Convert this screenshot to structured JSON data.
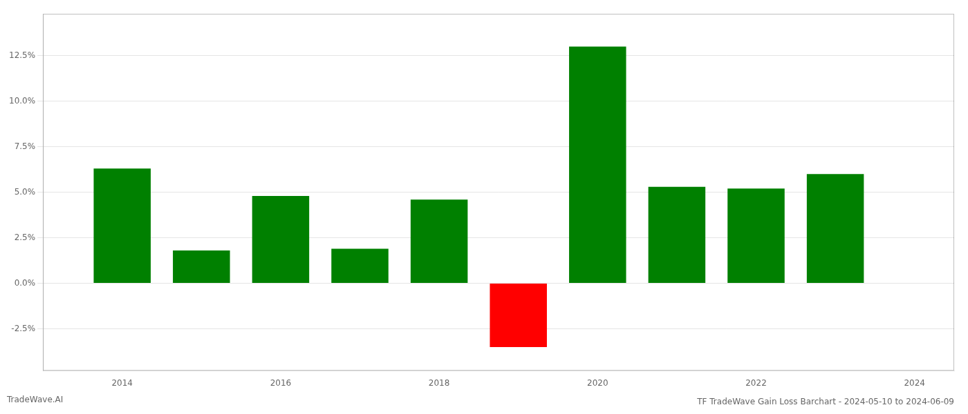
{
  "chart_data": {
    "type": "bar",
    "title": "TF TradeWave Gain Loss Barchart - 2024-05-10 to 2024-06-09",
    "annotations": [
      "TradeWave.AI"
    ],
    "x": [
      2014,
      2015,
      2016,
      2017,
      2018,
      2019,
      2020,
      2021,
      2022,
      2023
    ],
    "values": [
      0.063,
      0.018,
      0.048,
      0.019,
      0.046,
      -0.035,
      0.13,
      0.053,
      0.052,
      0.06
    ],
    "colors": [
      "#008000",
      "#008000",
      "#008000",
      "#008000",
      "#008000",
      "#ff0000",
      "#008000",
      "#008000",
      "#008000",
      "#008000"
    ],
    "xlim": [
      2013.0,
      2024.5
    ],
    "xticks": [
      2014,
      2016,
      2018,
      2020,
      2022,
      2024
    ],
    "ylim": [
      -0.048,
      0.148
    ],
    "yticks": [
      {
        "value": -0.025,
        "label": "-2.5%"
      },
      {
        "value": 0.0,
        "label": "0.0%"
      },
      {
        "value": 0.025,
        "label": "2.5%"
      },
      {
        "value": 0.05,
        "label": "5.0%"
      },
      {
        "value": 0.075,
        "label": "7.5%"
      },
      {
        "value": 0.1,
        "label": "10.0%"
      },
      {
        "value": 0.125,
        "label": "12.5%"
      }
    ],
    "grid": "y"
  }
}
